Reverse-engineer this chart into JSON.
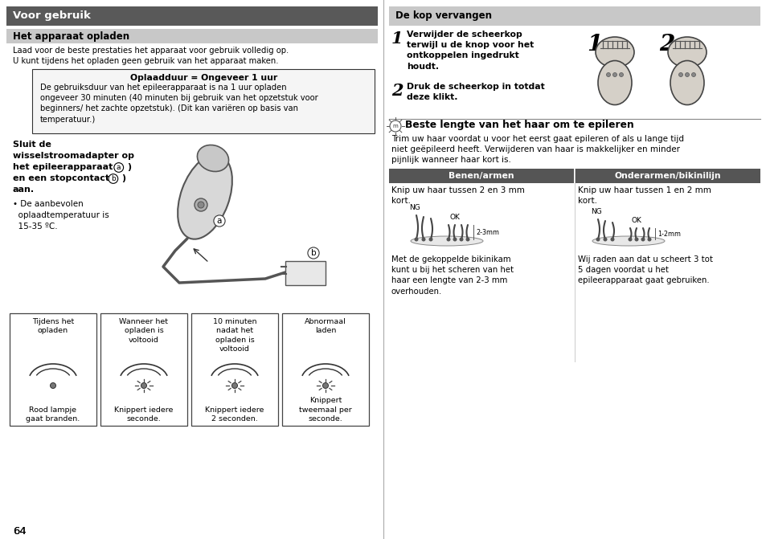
{
  "bg_color": "#ffffff",
  "dark_header_color": "#595959",
  "light_header_color": "#c8c8c8",
  "col_header_color": "#555555",
  "text_color": "#000000",
  "white_text": "#ffffff",
  "page_number": "64",
  "left_title": "Voor gebruik",
  "left_subtitle": "Het apparaat opladen",
  "left_body1": "Laad voor de beste prestaties het apparaat voor gebruik volledig op.\nU kunt tijdens het opladen geen gebruik van het apparaat maken.",
  "left_box_title": "Oplaadduur = Ongeveer 1 uur",
  "left_box_body": "De gebruiksduur van het epileerapparaat is na 1 uur opladen\nongeveer 30 minuten (40 minuten bij gebruik van het opzetstuk voor\nbeginners/ het zachte opzetstuk). (Dit kan variëren op basis van\ntemperatuur.)",
  "left_sluit_line1": "Sluit de",
  "left_sluit_line2": "wisselstroomadapter op",
  "left_sluit_line3": "het epileerapparaat (",
  "left_sluit_a": "a",
  "left_sluit_line4": ")",
  "left_sluit_line5": "en een stopcontact (",
  "left_sluit_b": "b",
  "left_sluit_line6": ")",
  "left_sluit_line7": "aan.",
  "left_bullet": "• De aanbevolen\n  oplaadtemperatuur is\n  15-35 ºC.",
  "right_title": "De kop vervangen",
  "right_step1_text": "Verwijder de scheerkop\nterwijl u de knop voor het\nontkoppelen ingedrukt\nhoudt.",
  "right_step2_text": "Druk de scheerkop in totdat\ndeze klikt.",
  "right_best_header": "Beste lengte van het haar om te epileren",
  "right_best_body": "Trim uw haar voordat u voor het eerst gaat epileren of als u lange tijd\nniet geëpileerd heeft. Verwijderen van haar is makkelijker en minder\npijnlijk wanneer haar kort is.",
  "col1_header": "Benen/armen",
  "col2_header": "Onderarmen/bikinilijn",
  "col1_body": "Knip uw haar tussen 2 en 3 mm\nkort.",
  "col2_body": "Knip uw haar tussen 1 en 2 mm\nkort.",
  "col1_caption": "Met de gekoppelde bikinikam\nkunt u bij het scheren van het\nhaar een lengte van 2-3 mm\noverhouden.",
  "col2_caption": "Wij raden aan dat u scheert 3 tot\n5 dagen voordat u het\nepileerapparaat gaat gebruiken.",
  "boxes": [
    {
      "title": "Tijdens het\nopladen",
      "caption": "Rood lampje\ngaat branden.",
      "blink": false
    },
    {
      "title": "Wanneer het\nopladen is\nvoltooid",
      "caption": "Knippert iedere\nseconde.",
      "blink": true
    },
    {
      "title": "10 minuten\nnadat het\nopladen is\nvoltooid",
      "caption": "Knippert iedere\n2 seconden.",
      "blink": true
    },
    {
      "title": "Abnormaal\nladen",
      "caption": "Knippert\ntweemaal per\nseconde.",
      "blink": true
    }
  ]
}
